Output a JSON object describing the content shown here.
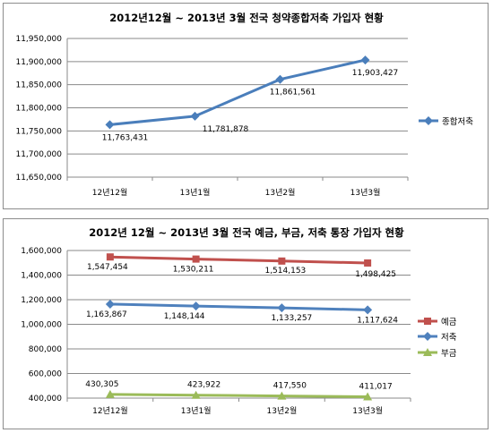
{
  "chart_data": [
    {
      "type": "line",
      "title": "2012년12월 ~ 2013년 3월 전국 청약종합저축 가입자 현황",
      "categories": [
        "12년12월",
        "13년1월",
        "13년2월",
        "13년3월"
      ],
      "series": [
        {
          "name": "종합저축",
          "values": [
            11763431,
            11781878,
            11861561,
            11903427
          ],
          "labels": [
            "11,763,431",
            "11,781,878",
            "11,861,561",
            "11,903,427"
          ],
          "color": "#4a7ebb"
        }
      ],
      "yticks": [
        "11,650,000",
        "11,700,000",
        "11,750,000",
        "11,800,000",
        "11,850,000",
        "11,900,000",
        "11,950,000"
      ],
      "ylim": [
        11650000,
        11950000
      ],
      "grid": true,
      "legend_position": "right"
    },
    {
      "type": "line",
      "title": "2012년 12월 ~ 2013년 3월 전국 예금, 부금, 저축 통장 가입자 현황",
      "categories": [
        "12년12월",
        "13년1월",
        "13년2월",
        "13년3월"
      ],
      "series": [
        {
          "name": "예금",
          "values": [
            1547454,
            1530211,
            1514153,
            1498425
          ],
          "labels": [
            "1,547,454",
            "1,530,211",
            "1,514,153",
            "1,498,425"
          ],
          "color": "#c0504d"
        },
        {
          "name": "저축",
          "values": [
            1163867,
            1148144,
            1133257,
            1117624
          ],
          "labels": [
            "1,163,867",
            "1,148,144",
            "1,133,257",
            "1,117,624"
          ],
          "color": "#4f81bd"
        },
        {
          "name": "부금",
          "values": [
            430305,
            423922,
            417550,
            411017
          ],
          "labels": [
            "430,305",
            "423,922",
            "417,550",
            "411,017"
          ],
          "color": "#9bbb59"
        }
      ],
      "yticks": [
        "400,000",
        "600,000",
        "800,000",
        "1,000,000",
        "1,200,000",
        "1,400,000",
        "1,600,000"
      ],
      "ylim": [
        400000,
        1600000
      ],
      "grid": true,
      "legend_position": "right"
    }
  ]
}
